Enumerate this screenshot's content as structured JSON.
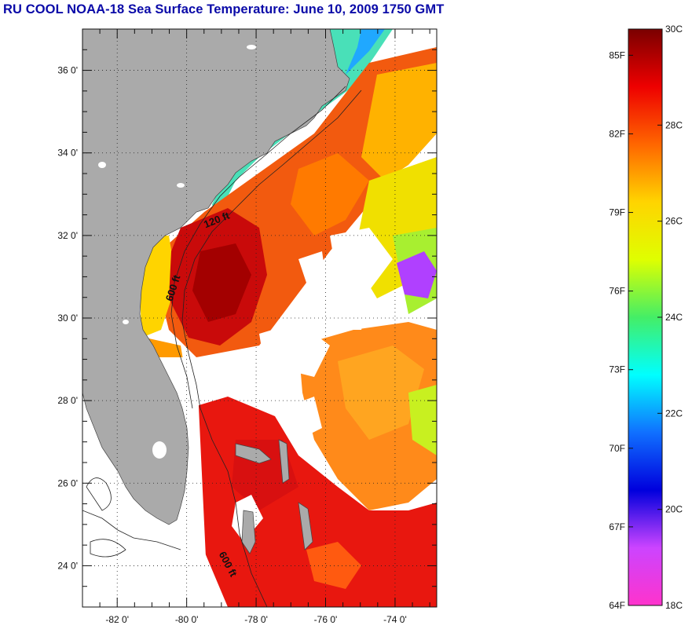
{
  "title": "RU COOL  NOAA-18  Sea Surface Temperature:  June 10, 2009 1750 GMT",
  "map": {
    "lon_range": [
      -83,
      -72.8
    ],
    "lat_range": [
      23,
      37
    ],
    "lat_ticks": [
      {
        "value": 36,
        "label": "36 0'"
      },
      {
        "value": 34,
        "label": "34 0'"
      },
      {
        "value": 32,
        "label": "32 0'"
      },
      {
        "value": 30,
        "label": "30 0'"
      },
      {
        "value": 28,
        "label": "28 0'"
      },
      {
        "value": 26,
        "label": "26 0'"
      },
      {
        "value": 24,
        "label": "24 0'"
      }
    ],
    "lon_ticks": [
      {
        "value": -82,
        "label": "-82 0'"
      },
      {
        "value": -80,
        "label": "-80 0'"
      },
      {
        "value": -78,
        "label": "-78 0'"
      },
      {
        "value": -76,
        "label": "-76 0'"
      },
      {
        "value": -74,
        "label": "-74 0'"
      }
    ],
    "contour_labels": [
      {
        "text": "120 ft",
        "lon": -79.1,
        "lat": 32.3,
        "angle": -22
      },
      {
        "text": "600 ft",
        "lon": -80.3,
        "lat": 30.7,
        "angle": -72
      },
      {
        "text": "600 ft",
        "lon": -78.9,
        "lat": 24.0,
        "angle": 62
      }
    ],
    "colors": {
      "land": "#aaaaaa",
      "nodata": "#ffffff",
      "grid": "#222222"
    }
  },
  "colorbar": {
    "celsius_labels": [
      "30C",
      "28C",
      "26C",
      "24C",
      "22C",
      "20C",
      "18C"
    ],
    "fahrenheit_labels": [
      "85F",
      "82F",
      "79F",
      "76F",
      "73F",
      "70F",
      "67F",
      "64F"
    ],
    "stops": [
      "#7a0000",
      "#ee0000",
      "#ff6600",
      "#ffd400",
      "#dfff00",
      "#44ee66",
      "#00ffff",
      "#1070ff",
      "#0000dd",
      "#cc44ff",
      "#ff33cc"
    ]
  }
}
